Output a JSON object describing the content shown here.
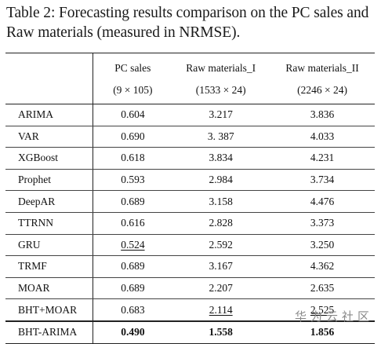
{
  "caption": "Table 2: Forecasting results comparison on the PC sales and Raw materials (measured in NRMSE).",
  "table": {
    "headers": [
      "",
      "PC sales",
      "Raw materials_I",
      "Raw materials_II"
    ],
    "subheaders": [
      "",
      "(9 × 105)",
      "(1533 × 24)",
      "(2246 × 24)"
    ],
    "rows": [
      {
        "method": "ARIMA",
        "pc": "0.604",
        "raw1": "3.217",
        "raw2": "3.836"
      },
      {
        "method": "VAR",
        "pc": "0.690",
        "raw1": "3. 387",
        "raw2": "4.033"
      },
      {
        "method": "XGBoost",
        "pc": "0.618",
        "raw1": "3.834",
        "raw2": "4.231"
      },
      {
        "method": "Prophet",
        "pc": "0.593",
        "raw1": "2.984",
        "raw2": "3.734"
      },
      {
        "method": "DeepAR",
        "pc": "0.689",
        "raw1": "3.158",
        "raw2": "4.476"
      },
      {
        "method": "TTRNN",
        "pc": "0.616",
        "raw1": "2.828",
        "raw2": "3.373"
      },
      {
        "method": "GRU",
        "pc": "0.524",
        "raw1": "2.592",
        "raw2": "3.250"
      },
      {
        "method": "TRMF",
        "pc": "0.689",
        "raw1": "3.167",
        "raw2": "4.362"
      },
      {
        "method": "MOAR",
        "pc": "0.689",
        "raw1": "2.207",
        "raw2": "2.635"
      },
      {
        "method": "BHT+MOAR",
        "pc": "0.683",
        "raw1": "2.114",
        "raw2": "2.525"
      }
    ],
    "final": {
      "method": "BHT-ARIMA",
      "pc": "0.490",
      "raw1": "1.558",
      "raw2": "1.856"
    }
  },
  "watermark": "华为云社区"
}
